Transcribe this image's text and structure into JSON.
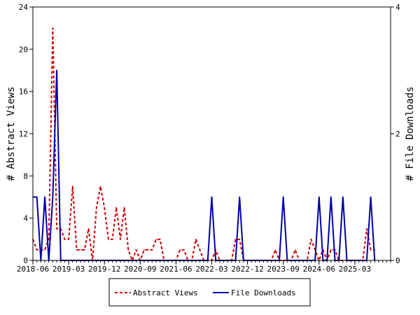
{
  "chart_data": {
    "type": "line",
    "ylabel_left": "# Abstract Views",
    "ylabel_right": "# File Downloads",
    "xlabel": "",
    "title": "",
    "ylim_left": [
      0,
      24
    ],
    "ylim_right": [
      0,
      4
    ],
    "yticks_left": [
      "0",
      "4",
      "8",
      "12",
      "16",
      "20",
      "24"
    ],
    "yticks_right": [
      "0",
      "2",
      "4"
    ],
    "xlim_months": [
      "2018-06",
      "2025-12"
    ],
    "xticks": [
      "2018-06",
      "2019-03",
      "2019-12",
      "2020-09",
      "2021-06",
      "2022-03",
      "2022-12",
      "2023-09",
      "2024-06",
      "2025-03"
    ],
    "legend_placement": "bottom-center",
    "series": [
      {
        "name": "Abstract Views",
        "axis": "left",
        "color": "#cc0000",
        "dash": "dashed",
        "x": [
          "2018-06",
          "2018-07",
          "2018-08",
          "2018-09",
          "2018-10",
          "2018-11",
          "2018-12",
          "2019-01",
          "2019-02",
          "2019-03",
          "2019-04",
          "2019-05",
          "2019-06",
          "2019-07",
          "2019-08",
          "2019-09",
          "2019-10",
          "2019-11",
          "2019-12",
          "2020-01",
          "2020-02",
          "2020-03",
          "2020-04",
          "2020-05",
          "2020-06",
          "2020-07",
          "2020-08",
          "2020-09",
          "2020-10",
          "2020-11",
          "2020-12",
          "2021-01",
          "2021-02",
          "2021-03",
          "2021-04",
          "2021-05",
          "2021-06",
          "2021-07",
          "2021-08",
          "2021-09",
          "2021-10",
          "2021-11",
          "2021-12",
          "2022-01",
          "2022-02",
          "2022-03",
          "2022-04",
          "2022-05",
          "2022-06",
          "2022-07",
          "2022-08",
          "2022-09",
          "2022-10",
          "2022-11",
          "2022-12",
          "2023-01",
          "2023-02",
          "2023-03",
          "2023-04",
          "2023-05",
          "2023-06",
          "2023-07",
          "2023-08",
          "2023-09",
          "2023-10",
          "2023-11",
          "2023-12",
          "2024-01",
          "2024-02",
          "2024-03",
          "2024-04",
          "2024-05",
          "2024-06",
          "2024-07",
          "2024-08",
          "2024-09",
          "2024-10",
          "2024-11",
          "2024-12",
          "2025-01",
          "2025-02",
          "2025-03",
          "2025-04",
          "2025-05",
          "2025-06",
          "2025-07",
          "2025-08"
        ],
        "values": [
          2,
          1,
          1,
          1,
          2,
          22,
          3,
          3,
          2,
          2,
          7,
          1,
          1,
          1,
          3,
          0,
          5,
          7,
          5,
          2,
          2,
          5,
          2,
          5,
          1,
          0,
          1,
          0,
          1,
          1,
          1,
          2,
          2,
          0,
          0,
          0,
          0,
          1,
          1,
          0,
          0,
          2,
          1,
          0,
          0,
          0,
          1,
          0,
          0,
          0,
          0,
          2,
          2,
          0,
          0,
          0,
          0,
          0,
          0,
          0,
          0,
          1,
          0,
          0,
          0,
          0,
          1,
          0,
          0,
          0,
          2,
          1,
          0,
          1,
          0,
          1,
          1,
          0,
          0,
          0,
          0,
          0,
          0,
          0,
          3,
          1,
          1
        ]
      },
      {
        "name": "File Downloads",
        "axis": "right",
        "color": "#0000aa",
        "dash": "solid",
        "x": [
          "2018-06",
          "2018-07",
          "2018-08",
          "2018-09",
          "2018-10",
          "2018-11",
          "2018-12",
          "2019-01",
          "2019-02",
          "2019-03",
          "2019-04",
          "2019-05",
          "2019-06",
          "2019-07",
          "2019-08",
          "2019-09",
          "2019-10",
          "2019-11",
          "2019-12",
          "2020-01",
          "2020-02",
          "2020-03",
          "2020-04",
          "2020-05",
          "2020-06",
          "2020-07",
          "2020-08",
          "2020-09",
          "2020-10",
          "2020-11",
          "2020-12",
          "2021-01",
          "2021-02",
          "2021-03",
          "2021-04",
          "2021-05",
          "2021-06",
          "2021-07",
          "2021-08",
          "2021-09",
          "2021-10",
          "2021-11",
          "2021-12",
          "2022-01",
          "2022-02",
          "2022-03",
          "2022-04",
          "2022-05",
          "2022-06",
          "2022-07",
          "2022-08",
          "2022-09",
          "2022-10",
          "2022-11",
          "2022-12",
          "2023-01",
          "2023-02",
          "2023-03",
          "2023-04",
          "2023-05",
          "2023-06",
          "2023-07",
          "2023-08",
          "2023-09",
          "2023-10",
          "2023-11",
          "2023-12",
          "2024-01",
          "2024-02",
          "2024-03",
          "2024-04",
          "2024-05",
          "2024-06",
          "2024-07",
          "2024-08",
          "2024-09",
          "2024-10",
          "2024-11",
          "2024-12",
          "2025-01",
          "2025-02",
          "2025-03",
          "2025-04",
          "2025-05",
          "2025-06",
          "2025-07",
          "2025-08"
        ],
        "values": [
          1,
          1,
          0,
          1,
          0,
          1,
          3,
          0,
          0,
          0,
          0,
          0,
          0,
          0,
          0,
          0,
          0,
          0,
          0,
          0,
          0,
          0,
          0,
          0,
          0,
          0,
          0,
          0,
          0,
          0,
          0,
          0,
          0,
          0,
          0,
          0,
          0,
          0,
          0,
          0,
          0,
          0,
          0,
          0,
          0,
          1,
          0,
          0,
          0,
          0,
          0,
          0,
          1,
          0,
          0,
          0,
          0,
          0,
          0,
          0,
          0,
          0,
          0,
          1,
          0,
          0,
          0,
          0,
          0,
          0,
          0,
          0,
          1,
          0,
          0,
          1,
          0,
          0,
          1,
          0,
          0,
          0,
          0,
          0,
          0,
          1,
          0
        ]
      }
    ]
  }
}
